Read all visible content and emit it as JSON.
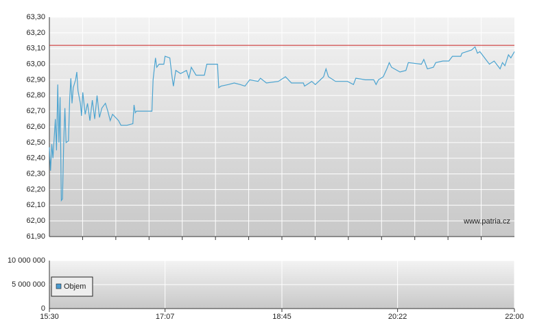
{
  "chart_data": [
    {
      "type": "line",
      "color": "#4aa3d0",
      "grid": true,
      "annotation": "www.patria.cz",
      "reference_line": {
        "value": 63.12,
        "color": "#cc2222"
      },
      "xlim": [
        "15:30",
        "22:00"
      ],
      "ylim": [
        61.9,
        63.3
      ],
      "yticks": [
        {
          "value": 61.9,
          "label": "61,90"
        },
        {
          "value": 62.0,
          "label": "62,00"
        },
        {
          "value": 62.1,
          "label": "62,10"
        },
        {
          "value": 62.2,
          "label": "62,20"
        },
        {
          "value": 62.3,
          "label": "62,30"
        },
        {
          "value": 62.4,
          "label": "62,40"
        },
        {
          "value": 62.5,
          "label": "62,50"
        },
        {
          "value": 62.6,
          "label": "62,60"
        },
        {
          "value": 62.7,
          "label": "62,70"
        },
        {
          "value": 62.8,
          "label": "62,80"
        },
        {
          "value": 62.9,
          "label": "62,90"
        },
        {
          "value": 63.0,
          "label": "63,00"
        },
        {
          "value": 63.1,
          "label": "63,10"
        },
        {
          "value": 63.2,
          "label": "63,20"
        },
        {
          "value": 63.3,
          "label": "63,30"
        }
      ],
      "x": [
        "15:30",
        "15:31",
        "15:32",
        "15:33",
        "15:35",
        "15:36",
        "15:37",
        "15:38",
        "15:39",
        "15:40",
        "15:41",
        "15:42",
        "15:43",
        "15:44",
        "15:46",
        "15:47",
        "15:48",
        "15:49",
        "15:50",
        "15:52",
        "15:53",
        "15:54",
        "15:56",
        "15:57",
        "15:58",
        "16:00",
        "16:02",
        "16:04",
        "16:06",
        "16:08",
        "16:10",
        "16:12",
        "16:14",
        "16:17",
        "16:19",
        "16:21",
        "16:23",
        "16:28",
        "16:30",
        "16:35",
        "16:40",
        "16:41",
        "16:42",
        "16:43",
        "16:56",
        "16:57",
        "16:59",
        "17:00",
        "17:02",
        "17:06",
        "17:07",
        "17:11",
        "17:13",
        "17:14",
        "17:16",
        "17:20",
        "17:25",
        "17:27",
        "17:29",
        "17:33",
        "17:40",
        "17:42",
        "17:51",
        "17:52",
        "17:54",
        "18:00",
        "18:05",
        "18:10",
        "18:14",
        "18:18",
        "18:25",
        "18:27",
        "18:32",
        "18:42",
        "18:48",
        "18:53",
        "19:03",
        "19:04",
        "19:10",
        "19:13",
        "19:20",
        "19:22",
        "19:24",
        "19:30",
        "19:40",
        "19:45",
        "19:47",
        "19:55",
        "20:02",
        "20:04",
        "20:06",
        "20:10",
        "20:13",
        "20:15",
        "20:17",
        "20:24",
        "20:29",
        "20:31",
        "20:42",
        "20:44",
        "20:47",
        "20:52",
        "20:54",
        "21:00",
        "21:05",
        "21:08",
        "21:15",
        "21:16",
        "21:24",
        "21:27",
        "21:29",
        "21:31",
        "21:34",
        "21:39",
        "21:43",
        "21:48",
        "21:50",
        "21:52",
        "21:55",
        "21:57",
        "22:00"
      ],
      "values": [
        62.47,
        62.32,
        62.49,
        62.4,
        62.65,
        62.45,
        62.87,
        62.5,
        62.79,
        62.13,
        62.14,
        62.5,
        62.72,
        62.5,
        62.51,
        62.78,
        62.91,
        62.75,
        62.85,
        62.9,
        62.95,
        62.83,
        62.75,
        62.67,
        62.82,
        62.68,
        62.75,
        62.64,
        62.77,
        62.65,
        62.8,
        62.66,
        62.72,
        62.75,
        62.7,
        62.64,
        62.68,
        62.64,
        62.61,
        62.61,
        62.62,
        62.74,
        62.69,
        62.7,
        62.7,
        62.9,
        63.04,
        62.98,
        63.0,
        63.0,
        63.05,
        63.04,
        62.91,
        62.86,
        62.96,
        62.94,
        62.96,
        62.91,
        62.98,
        62.93,
        62.93,
        63.0,
        63.0,
        62.85,
        62.86,
        62.87,
        62.88,
        62.87,
        62.86,
        62.9,
        62.89,
        62.91,
        62.88,
        62.89,
        62.92,
        62.88,
        62.88,
        62.86,
        62.89,
        62.87,
        62.92,
        62.97,
        62.92,
        62.89,
        62.89,
        62.87,
        62.91,
        62.9,
        62.9,
        62.87,
        62.9,
        62.92,
        62.97,
        63.01,
        62.98,
        62.95,
        62.96,
        63.01,
        63.0,
        63.03,
        62.97,
        62.98,
        63.01,
        63.02,
        63.02,
        63.05,
        63.05,
        63.07,
        63.09,
        63.11,
        63.07,
        63.08,
        63.05,
        63.0,
        63.02,
        62.97,
        63.01,
        62.99,
        63.06,
        63.04,
        63.08
      ]
    },
    {
      "type": "bar",
      "legend": "left",
      "grid": true,
      "xlim": [
        "15:30",
        "22:00"
      ],
      "xticks": [
        "15:30",
        "17:07",
        "18:45",
        "20:22",
        "22:00"
      ],
      "ylim": [
        0,
        10000000
      ],
      "yticks": [
        {
          "value": 0,
          "label": "0"
        },
        {
          "value": 5000000,
          "label": "5 000 000"
        },
        {
          "value": 10000000,
          "label": "10 000 000"
        }
      ],
      "series": [
        {
          "name": "Objem",
          "color": "#4a9bd0"
        }
      ]
    }
  ]
}
